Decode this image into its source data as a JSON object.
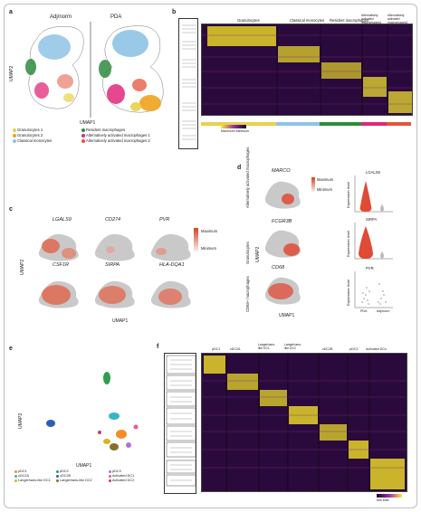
{
  "panels": {
    "a": {
      "letter": "a",
      "titles": [
        "Adj/norm",
        "PDA"
      ],
      "xaxis": "UMAP1",
      "yaxis": "UMAP2",
      "legend": [
        {
          "label": "Granulocytes 1",
          "color": "#e8d248"
        },
        {
          "label": "Granulocytes 2",
          "color": "#f0a21e"
        },
        {
          "label": "Classical monocytes",
          "color": "#8fc3e6"
        },
        {
          "label": "Resident macrophages",
          "color": "#2e8b3e"
        },
        {
          "label": "Alternatively activated macrophages 1",
          "color": "#e0287a"
        },
        {
          "label": "Alternatively activated macrophages 2",
          "color": "#e5533c"
        }
      ]
    },
    "b": {
      "letter": "b",
      "column_labels": [
        "Granulocytes",
        "Classical monocytes",
        "Resident macrophages",
        "Alternatively activated macrophages1",
        "Alternatively activated macrophages2"
      ],
      "colorbar_label": "Maximum  Minimum"
    },
    "c": {
      "letter": "c",
      "genes_row1": [
        "LGALS9",
        "CD274",
        "PVR"
      ],
      "genes_row2": [
        "CSF1R",
        "SIRPA",
        "HLA-DQA1"
      ],
      "xaxis": "UMAP1",
      "yaxis": "UMAP2",
      "legend_max": "Maximum",
      "legend_min": "Minimum"
    },
    "d": {
      "letter": "d",
      "row_labels": [
        "Alternatively activated macrophages",
        "Granulocytes",
        "CD68+ macrophages"
      ],
      "genes": [
        "MARCO",
        "FCGR3B",
        "CD68"
      ],
      "violin_titles": [
        "LGALS9",
        "SIRPA",
        "PVR"
      ],
      "violin_ylabel": "Expression level",
      "violin_groups": [
        "PDA",
        "Adj/norm"
      ],
      "legend_max": "Maximum",
      "legend_min": "Minimum",
      "xaxis": "UMAP1",
      "yaxis": "UMAP2"
    },
    "e": {
      "letter": "e",
      "xaxis": "UMAP1",
      "yaxis": "UMAP2",
      "legend": [
        {
          "label": "pDC1",
          "color": "#f28c28"
        },
        {
          "label": "pDC2",
          "color": "#2e9e4e"
        },
        {
          "label": "pDC3",
          "color": "#b570d6"
        },
        {
          "label": "cDC2A",
          "color": "#38b6c8"
        },
        {
          "label": "cDC2B",
          "color": "#2e5fb8"
        },
        {
          "label": "Activated DC1",
          "color": "#e85a9a"
        },
        {
          "label": "Langerhans-like DC1",
          "color": "#d9b21e"
        },
        {
          "label": "Langerhans-like DC2",
          "color": "#8a6d2e"
        },
        {
          "label": "Activated DC2",
          "color": "#c23d6e"
        }
      ]
    },
    "f": {
      "letter": "f",
      "column_labels": [
        "pDC1",
        "cDC2A",
        "Langerhans-like DC1",
        "Langerhans-like DC2",
        "cDC2B",
        "pDC3",
        "Activated DCs"
      ],
      "colorbar_label": "Min   Max"
    }
  }
}
